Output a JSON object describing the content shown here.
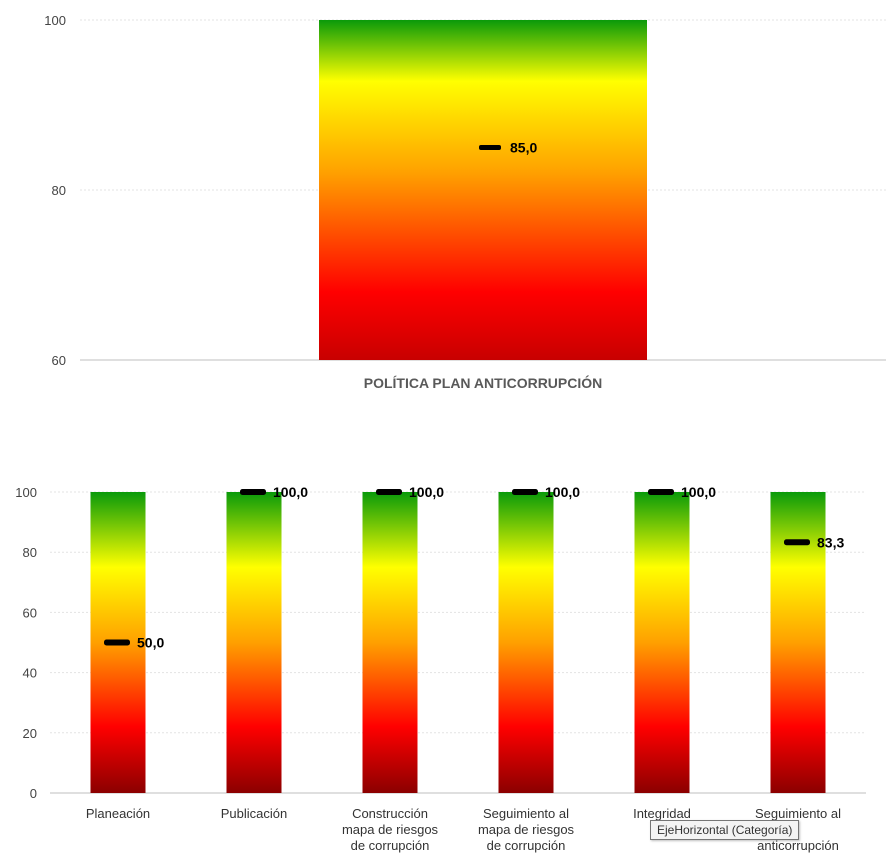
{
  "colors": {
    "green": "#0a9a0a",
    "yellow": "#ffff00",
    "orange": "#ffa000",
    "red": "#ff0000",
    "dark_red": "#8b0000",
    "marker": "#000000"
  },
  "tooltip": "EjeHorizontal (Categoría)",
  "chart_data": [
    {
      "type": "bar",
      "categories": [
        "POLÍTICA PLAN ANTICORRUPCIÓN"
      ],
      "bar_max": [
        100
      ],
      "values": [
        85.0
      ],
      "value_labels": [
        "85,0"
      ],
      "ylim": [
        60,
        100
      ],
      "yticks": [
        60,
        80,
        100
      ],
      "grid": true
    },
    {
      "type": "bar",
      "categories": [
        [
          "Planeación"
        ],
        [
          "Publicación"
        ],
        [
          "Construcción",
          "mapa de riesgos",
          "de corrupción"
        ],
        [
          "Seguimiento al",
          "mapa de riesgos",
          "de corrupción"
        ],
        [
          "Integridad"
        ],
        [
          "Seguimiento al",
          "",
          "anticorrupción"
        ]
      ],
      "bar_max": [
        100,
        100,
        100,
        100,
        100,
        100
      ],
      "values": [
        50.0,
        100.0,
        100.0,
        100.0,
        100.0,
        83.3
      ],
      "value_labels": [
        "50,0",
        "100,0",
        "100,0",
        "100,0",
        "100,0",
        "83,3"
      ],
      "ylim": [
        0,
        100
      ],
      "yticks": [
        0,
        20,
        40,
        60,
        80,
        100
      ],
      "grid": true
    }
  ]
}
